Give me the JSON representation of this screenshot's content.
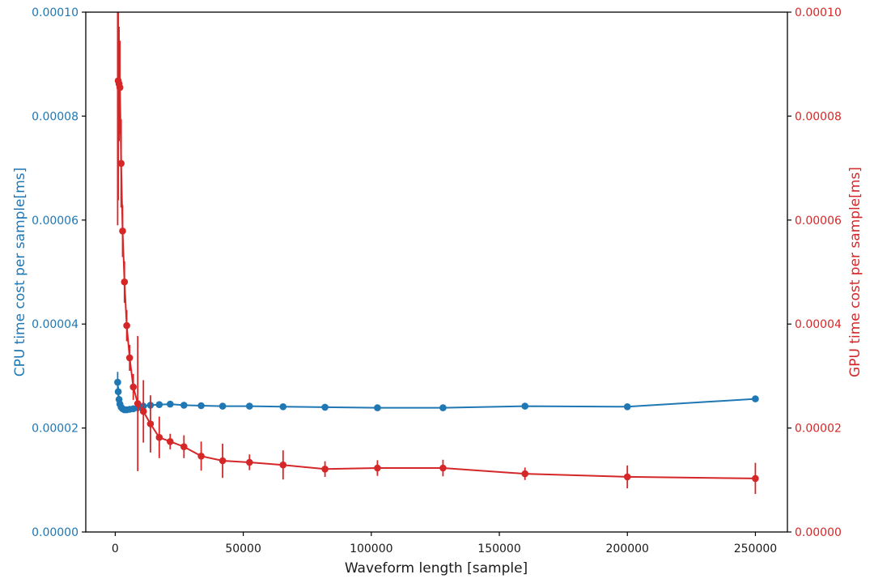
{
  "chart_data": {
    "type": "line",
    "title": "",
    "xlabel": "Waveform length [sample]",
    "ylabel_left": "CPU time cost per sample[ms]",
    "ylabel_right": "GPU time cost per sample[ms]",
    "xlim": [
      -11500,
      262500
    ],
    "ylim": [
      0,
      0.0001
    ],
    "grid": false,
    "legend": "none",
    "x_ticks": {
      "values": [
        0,
        50000,
        100000,
        150000,
        200000,
        250000
      ],
      "labels": [
        "0",
        "50000",
        "100000",
        "150000",
        "200000",
        "250000"
      ]
    },
    "y_ticks_left": {
      "values": [
        0,
        2e-05,
        4e-05,
        6e-05,
        8e-05,
        0.0001
      ],
      "labels": [
        "0.00000",
        "0.00002",
        "0.00004",
        "0.00006",
        "0.00008",
        "0.00010"
      ]
    },
    "y_ticks_right": {
      "values": [
        0,
        2e-05,
        4e-05,
        6e-05,
        8e-05,
        0.0001
      ],
      "labels": [
        "0.00000",
        "0.00002",
        "0.00004",
        "0.00006",
        "0.00008",
        "0.00010"
      ]
    },
    "axis_colors": {
      "left": "#1f77b4",
      "right": "#d62728",
      "ticks": "#1a1a1a",
      "spine": "#000000"
    },
    "style": {
      "line_width": 2,
      "marker": "o",
      "marker_radius": 4.3,
      "error_caps": false
    },
    "series": [
      {
        "name": "CPU",
        "yaxis": "left",
        "color": "#1f77b4",
        "x": [
          944,
          1181,
          1476,
          1845,
          2306,
          2882,
          3603,
          4504,
          5629,
          7037,
          8796,
          10995,
          13744,
          17180,
          21475,
          26844,
          33554,
          41943,
          52429,
          65536,
          81920,
          102400,
          128000,
          160000,
          200000,
          250000
        ],
        "y": [
          2.88e-05,
          2.7e-05,
          2.55e-05,
          2.46e-05,
          2.4e-05,
          2.37e-05,
          2.35e-05,
          2.35e-05,
          2.36e-05,
          2.37e-05,
          2.39e-05,
          2.42e-05,
          2.44e-05,
          2.45e-05,
          2.46e-05,
          2.44e-05,
          2.43e-05,
          2.42e-05,
          2.42e-05,
          2.41e-05,
          2.4e-05,
          2.39e-05,
          2.39e-05,
          2.42e-05,
          2.41e-05,
          2.56e-05
        ],
        "yerr": [
          2e-06,
          9e-07,
          6e-07,
          5e-07,
          4e-07,
          3e-07,
          3e-07,
          3e-07,
          3e-07,
          3e-07,
          3e-07,
          3e-07,
          3e-07,
          3e-07,
          4e-07,
          3e-07,
          3e-07,
          3e-07,
          3e-07,
          3e-07,
          3e-07,
          3e-07,
          3e-07,
          3e-07,
          3e-07,
          4e-07
        ]
      },
      {
        "name": "GPU",
        "yaxis": "right",
        "color": "#d62728",
        "x": [
          944,
          1181,
          1476,
          1845,
          2306,
          2882,
          3603,
          4504,
          5629,
          7037,
          8796,
          10995,
          13744,
          17180,
          21475,
          26844,
          33554,
          41943,
          52429,
          65536,
          81920,
          102400,
          128000,
          160000,
          200000,
          250000
        ],
        "y": [
          0.000109,
          8.68e-05,
          8.62e-05,
          8.55e-05,
          7.09e-05,
          5.79e-05,
          4.81e-05,
          3.97e-05,
          3.35e-05,
          2.79e-05,
          2.47e-05,
          2.32e-05,
          2.08e-05,
          1.82e-05,
          1.74e-05,
          1.64e-05,
          1.46e-05,
          1.37e-05,
          1.34e-05,
          1.29e-05,
          1.21e-05,
          1.23e-05,
          1.23e-05,
          1.12e-05,
          1.06e-05,
          1.03e-05
        ],
        "yerr": [
          5e-05,
          2.3e-05,
          1.1e-05,
          9e-06,
          8.5e-06,
          5e-06,
          4e-06,
          3e-06,
          2.5e-06,
          2.5e-06,
          1.3e-05,
          6e-06,
          5.5e-06,
          4e-06,
          1.5e-06,
          2.2e-06,
          2.8e-06,
          3.3e-06,
          1.5e-06,
          2.8e-06,
          1.5e-06,
          1.5e-06,
          1.6e-06,
          1.2e-06,
          2.2e-06,
          3e-06
        ]
      }
    ]
  }
}
